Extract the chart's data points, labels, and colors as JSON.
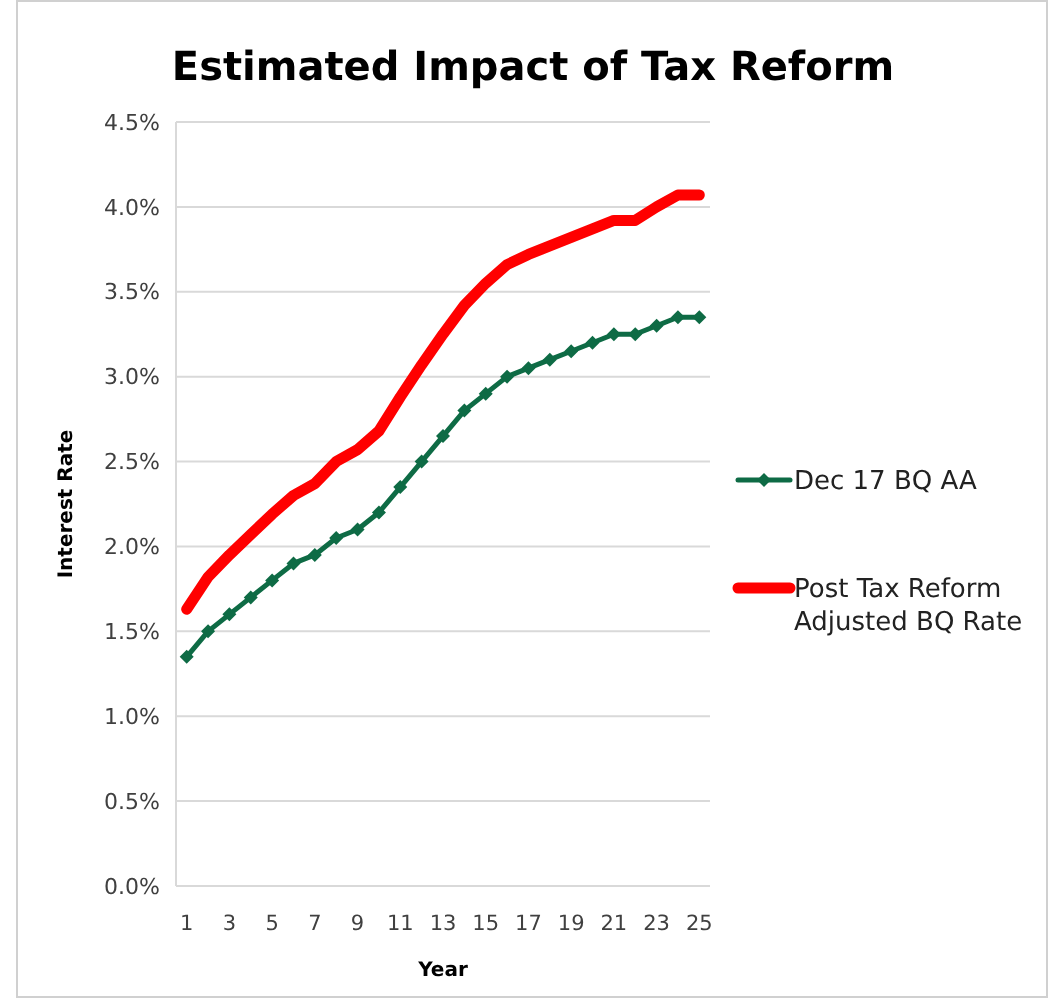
{
  "chart_data": {
    "type": "line",
    "title": "Estimated Impact of Tax Reform",
    "xlabel": "Year",
    "ylabel": "Interest Rate",
    "x": [
      1,
      2,
      3,
      4,
      5,
      6,
      7,
      8,
      9,
      10,
      11,
      12,
      13,
      14,
      15,
      16,
      17,
      18,
      19,
      20,
      21,
      22,
      23,
      24,
      25
    ],
    "xlim": [
      0.5,
      25.5
    ],
    "xticks": [
      1,
      3,
      5,
      7,
      9,
      11,
      13,
      15,
      17,
      19,
      21,
      23,
      25
    ],
    "series": [
      {
        "name": "Dec 17 BQ AA",
        "color": "#0e6b45",
        "marker": "diamond",
        "values": [
          1.35,
          1.5,
          1.6,
          1.7,
          1.8,
          1.9,
          1.95,
          2.05,
          2.1,
          2.2,
          2.35,
          2.5,
          2.65,
          2.8,
          2.9,
          3.0,
          3.05,
          3.1,
          3.15,
          3.2,
          3.25,
          3.25,
          3.3,
          3.35,
          3.35
        ]
      },
      {
        "name": "Post Tax Reform Adjusted BQ Rate",
        "color": "#ff0000",
        "marker": "none",
        "values": [
          1.63,
          1.82,
          1.95,
          2.07,
          2.19,
          2.3,
          2.37,
          2.5,
          2.57,
          2.68,
          2.88,
          3.07,
          3.25,
          3.42,
          3.55,
          3.66,
          3.72,
          3.77,
          3.82,
          3.87,
          3.92,
          3.92,
          4.0,
          4.07,
          4.07
        ]
      }
    ],
    "ylim": [
      0,
      4.5
    ],
    "yticks": [
      {
        "value": 0,
        "label": "0.0%"
      },
      {
        "value": 0.5,
        "label": "0.5%"
      },
      {
        "value": 1,
        "label": "1.0%"
      },
      {
        "value": 1.5,
        "label": "1.5%"
      },
      {
        "value": 2,
        "label": "2.0%"
      },
      {
        "value": 2.5,
        "label": "2.5%"
      },
      {
        "value": 3,
        "label": "3.0%"
      },
      {
        "value": 3.5,
        "label": "3.5%"
      },
      {
        "value": 4,
        "label": "4.0%"
      },
      {
        "value": 4.5,
        "label": "4.5%"
      }
    ],
    "grid": "y",
    "legend": "right",
    "line_style": "solid"
  }
}
